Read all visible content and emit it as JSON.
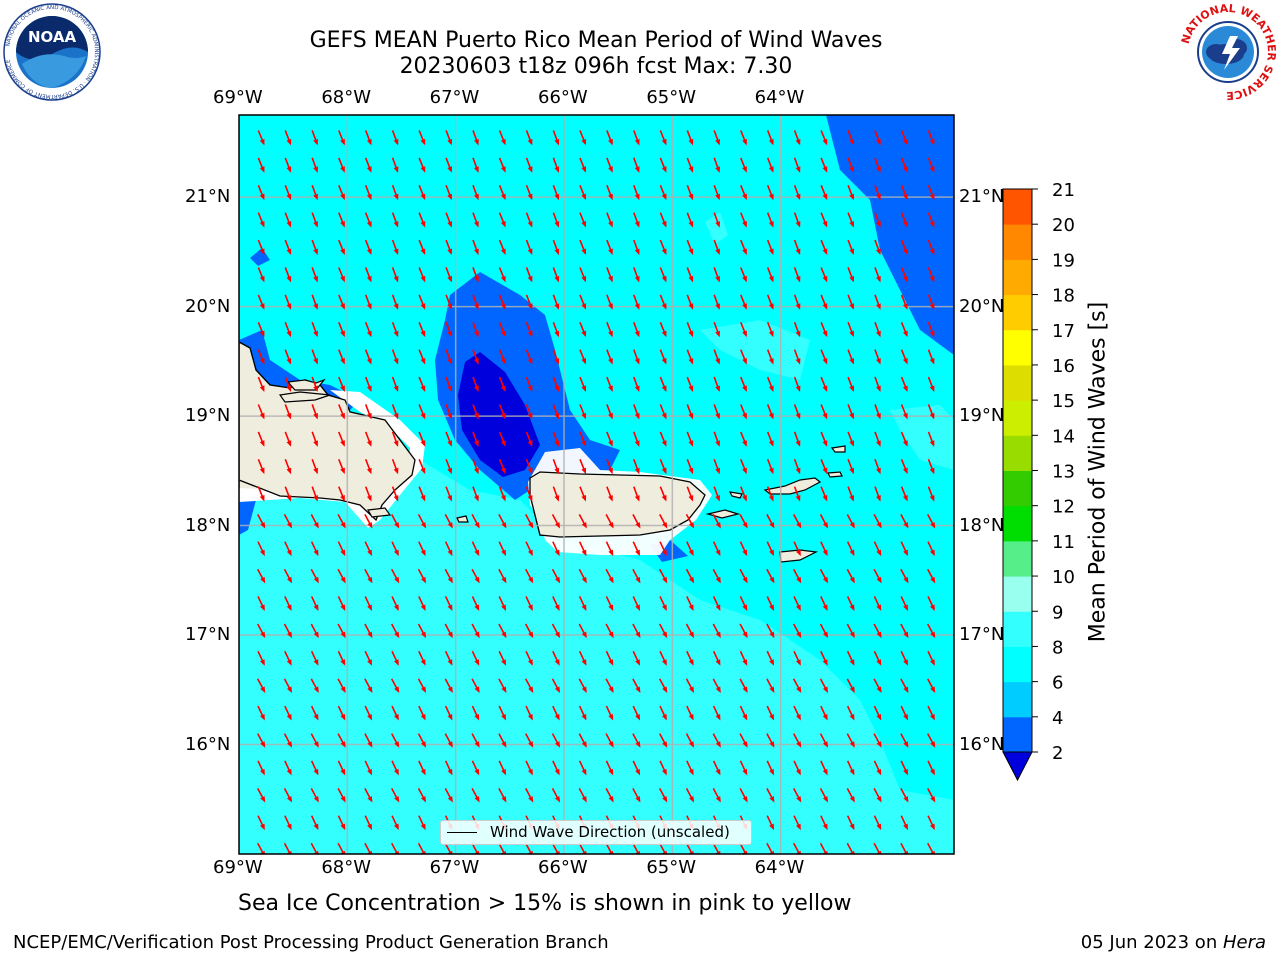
{
  "title": {
    "line1": "GEFS MEAN Puerto Rico Mean Period of Wind Waves",
    "line2": "20230603 t18z 096h fcst   Max: 7.30"
  },
  "map": {
    "lon_range": [
      -69.0,
      -62.4
    ],
    "lat_range": [
      15.0,
      21.75
    ],
    "lon_ticks": [
      "69°W",
      "68°W",
      "67°W",
      "66°W",
      "65°W",
      "64°W"
    ],
    "lat_ticks": [
      "21°N",
      "20°N",
      "19°N",
      "18°N",
      "17°N",
      "16°N"
    ],
    "background_color": "#00ffff",
    "wave_arrow_color": "#ff0000",
    "wave_direction": "north-northwest to south-southeast (arrows pointing SSE)",
    "land_color": "#efedde",
    "gridlines": true
  },
  "colorbar": {
    "label": "Mean Period of Wind Waves [s]",
    "ticks": [
      "2",
      "4",
      "6",
      "8",
      "9",
      "10",
      "11",
      "12",
      "13",
      "14",
      "15",
      "16",
      "17",
      "18",
      "19",
      "20",
      "21"
    ],
    "colors": [
      "#0066ff",
      "#00ccff",
      "#00ffff",
      "#33ffff",
      "#99ffee",
      "#55ee88",
      "#00dd00",
      "#33cc00",
      "#99dd00",
      "#ccee00",
      "#dddd00",
      "#ffff00",
      "#ffcc00",
      "#ffaa00",
      "#ff8800",
      "#ff5500",
      "#ff2200",
      "#ff0000"
    ],
    "under_color": "#0000dd"
  },
  "legend": {
    "label": "Wind Wave Direction (unscaled)"
  },
  "caption": "Sea Ice Concentration > 15% is shown in pink to yellow",
  "footer": {
    "left": "NCEP/EMC/Verification Post Processing Product Generation Branch",
    "date": "05 Jun 2023 on ",
    "machine": "Hera"
  },
  "logos": {
    "noaa": "NOAA",
    "noaa_ring": "NATIONAL OCEANIC AND ATMOSPHERIC ADMINISTRATION · U.S. DEPARTMENT OF COMMERCE",
    "nws": "NATIONAL WEATHER SERVICE"
  }
}
